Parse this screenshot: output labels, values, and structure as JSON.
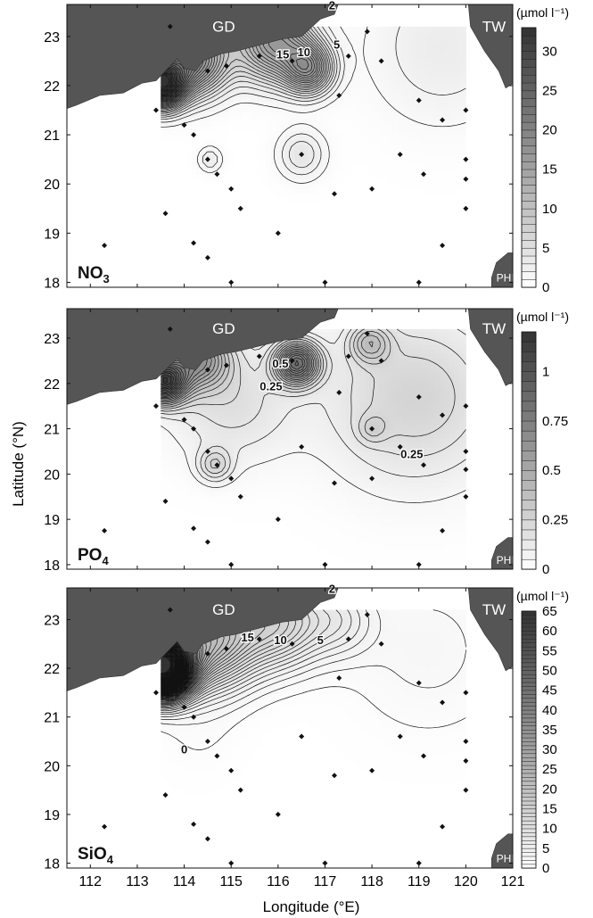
{
  "figure": {
    "xlabel": "Longitude (°E)",
    "ylabel": "Latitude (°N)",
    "x_ticks": [
      112,
      113,
      114,
      115,
      116,
      117,
      118,
      119,
      120,
      121
    ],
    "y_ticks": [
      18,
      19,
      20,
      21,
      22,
      23
    ],
    "unit_label": "(µmol l⁻¹)",
    "region_labels": {
      "guangdong": "GD",
      "taiwan": "TW",
      "philippines": "PHI"
    },
    "colors": {
      "land": "#555555",
      "contour": "#111111",
      "station": "#111111",
      "frame": "#111111"
    }
  },
  "chart_data": [
    {
      "type": "heatmap",
      "panel": "NO3",
      "label_main": "NO",
      "label_sub": "3",
      "xlim": [
        111.5,
        121
      ],
      "ylim": [
        17.9,
        23.65
      ],
      "colorbar": {
        "min": 0,
        "max": 33,
        "ticks": [
          0,
          5,
          10,
          15,
          20,
          25,
          30
        ],
        "step": 1
      },
      "contour_labels": [
        {
          "text": "15",
          "x": 116.1,
          "y": 22.55
        },
        {
          "text": "10",
          "x": 116.55,
          "y": 22.6
        },
        {
          "text": "5",
          "x": 117.25,
          "y": 22.75
        },
        {
          "text": "2",
          "x": 117.15,
          "y": 23.55
        }
      ],
      "field_sources": [
        {
          "x": 113.5,
          "y": 22.05,
          "amp": 31,
          "sigma": 0.33
        },
        {
          "x": 114.2,
          "y": 22.55,
          "amp": 18,
          "sigma": 0.5
        },
        {
          "x": 115.9,
          "y": 22.9,
          "amp": 16,
          "sigma": 0.55
        },
        {
          "x": 116.65,
          "y": 22.35,
          "amp": 14,
          "sigma": 0.35
        },
        {
          "x": 116.5,
          "y": 20.6,
          "amp": 4,
          "sigma": 0.35
        },
        {
          "x": 114.55,
          "y": 20.5,
          "amp": 3,
          "sigma": 0.18
        },
        {
          "x": 119.5,
          "y": 22.8,
          "amp": 3,
          "sigma": 1.1
        }
      ],
      "stations": [
        [
          113.7,
          23.2
        ],
        [
          114.5,
          22.3
        ],
        [
          114.9,
          22.4
        ],
        [
          115.6,
          22.6
        ],
        [
          116.3,
          22.5
        ],
        [
          117.5,
          22.6
        ],
        [
          118.2,
          22.5
        ],
        [
          117.9,
          23.1
        ],
        [
          119.0,
          21.7
        ],
        [
          117.3,
          21.8
        ],
        [
          119.5,
          21.3
        ],
        [
          120.0,
          21.5
        ],
        [
          114.0,
          21.2
        ],
        [
          114.5,
          20.5
        ],
        [
          114.7,
          20.2
        ],
        [
          115.0,
          19.9
        ],
        [
          115.2,
          19.5
        ],
        [
          116.0,
          19.0
        ],
        [
          116.5,
          20.6
        ],
        [
          117.2,
          19.8
        ],
        [
          118.0,
          19.9
        ],
        [
          118.6,
          20.6
        ],
        [
          119.1,
          20.2
        ],
        [
          120.0,
          20.5
        ],
        [
          120.0,
          20.1
        ],
        [
          120.0,
          19.5
        ],
        [
          119.5,
          18.75
        ],
        [
          112.3,
          18.75
        ],
        [
          114.2,
          18.8
        ],
        [
          114.5,
          18.5
        ],
        [
          113.6,
          19.4
        ],
        [
          115.0,
          18.0
        ],
        [
          117.0,
          18.0
        ],
        [
          119.0,
          18.0
        ],
        [
          113.4,
          21.5
        ],
        [
          114.2,
          21.0
        ]
      ]
    },
    {
      "type": "heatmap",
      "panel": "PO4",
      "label_main": "PO",
      "label_sub": "4",
      "xlim": [
        111.5,
        121
      ],
      "ylim": [
        17.9,
        23.65
      ],
      "colorbar": {
        "min": 0,
        "max": 1.2,
        "ticks": [
          0,
          0.25,
          0.5,
          0.75,
          1
        ],
        "step": 0.05
      },
      "contour_labels": [
        {
          "text": "0.5",
          "x": 116.05,
          "y": 22.35
        },
        {
          "text": "0.25",
          "x": 115.85,
          "y": 21.85
        },
        {
          "text": "0.25",
          "x": 118.85,
          "y": 20.35
        }
      ],
      "field_sources": [
        {
          "x": 113.55,
          "y": 22.05,
          "amp": 1.05,
          "sigma": 0.33
        },
        {
          "x": 114.3,
          "y": 22.55,
          "amp": 0.55,
          "sigma": 0.45
        },
        {
          "x": 116.4,
          "y": 22.45,
          "amp": 0.8,
          "sigma": 0.32
        },
        {
          "x": 117.95,
          "y": 22.9,
          "amp": 0.28,
          "sigma": 0.3
        },
        {
          "x": 114.65,
          "y": 20.2,
          "amp": 0.22,
          "sigma": 0.25
        },
        {
          "x": 118.0,
          "y": 21.0,
          "amp": 0.12,
          "sigma": 0.22
        },
        {
          "x": 118.9,
          "y": 21.7,
          "amp": 0.25,
          "sigma": 1.3
        },
        {
          "x": 115.0,
          "y": 21.6,
          "amp": 0.18,
          "sigma": 0.9
        }
      ],
      "stations": [
        [
          113.7,
          23.2
        ],
        [
          114.5,
          22.3
        ],
        [
          114.9,
          22.4
        ],
        [
          115.6,
          22.6
        ],
        [
          116.3,
          22.5
        ],
        [
          117.5,
          22.6
        ],
        [
          118.2,
          22.5
        ],
        [
          117.9,
          23.1
        ],
        [
          119.0,
          21.7
        ],
        [
          117.3,
          21.8
        ],
        [
          119.5,
          21.3
        ],
        [
          120.0,
          21.5
        ],
        [
          114.0,
          21.2
        ],
        [
          114.5,
          20.5
        ],
        [
          114.7,
          20.2
        ],
        [
          115.0,
          19.9
        ],
        [
          115.2,
          19.5
        ],
        [
          116.0,
          19.0
        ],
        [
          116.5,
          20.6
        ],
        [
          117.2,
          19.8
        ],
        [
          118.0,
          19.9
        ],
        [
          118.6,
          20.6
        ],
        [
          119.1,
          20.2
        ],
        [
          120.0,
          20.5
        ],
        [
          120.0,
          20.1
        ],
        [
          120.0,
          19.5
        ],
        [
          119.5,
          18.75
        ],
        [
          112.3,
          18.75
        ],
        [
          114.2,
          18.8
        ],
        [
          114.5,
          18.5
        ],
        [
          113.6,
          19.4
        ],
        [
          115.0,
          18.0
        ],
        [
          117.0,
          18.0
        ],
        [
          119.0,
          18.0
        ],
        [
          113.4,
          21.5
        ],
        [
          114.2,
          21.0
        ],
        [
          118.0,
          21.0
        ]
      ]
    },
    {
      "type": "heatmap",
      "panel": "SiO4",
      "label_main": "SiO",
      "label_sub": "4",
      "xlim": [
        111.5,
        121
      ],
      "ylim": [
        17.9,
        23.65
      ],
      "colorbar": {
        "min": 0,
        "max": 65,
        "ticks": [
          0,
          5,
          10,
          15,
          20,
          25,
          30,
          35,
          40,
          45,
          50,
          55,
          60,
          65
        ],
        "step": 1
      },
      "contour_labels": [
        {
          "text": "15",
          "x": 115.35,
          "y": 22.55
        },
        {
          "text": "10",
          "x": 116.05,
          "y": 22.5
        },
        {
          "text": "5",
          "x": 116.9,
          "y": 22.5
        },
        {
          "text": "2",
          "x": 117.15,
          "y": 23.55
        },
        {
          "text": "0",
          "x": 114.0,
          "y": 20.25
        }
      ],
      "field_sources": [
        {
          "x": 113.5,
          "y": 22.05,
          "amp": 65,
          "sigma": 0.42
        },
        {
          "x": 114.5,
          "y": 22.6,
          "amp": 20,
          "sigma": 0.7
        },
        {
          "x": 116.0,
          "y": 22.95,
          "amp": 12,
          "sigma": 0.65
        },
        {
          "x": 117.3,
          "y": 23.0,
          "amp": 5,
          "sigma": 0.55
        },
        {
          "x": 119.2,
          "y": 22.4,
          "amp": 2.5,
          "sigma": 1.2
        },
        {
          "x": 114.3,
          "y": 20.6,
          "amp": 1,
          "sigma": 0.6
        }
      ],
      "stations": [
        [
          113.7,
          23.2
        ],
        [
          114.5,
          22.3
        ],
        [
          114.9,
          22.4
        ],
        [
          115.6,
          22.6
        ],
        [
          116.3,
          22.5
        ],
        [
          117.5,
          22.6
        ],
        [
          118.2,
          22.5
        ],
        [
          117.9,
          23.1
        ],
        [
          119.0,
          21.7
        ],
        [
          117.3,
          21.8
        ],
        [
          119.5,
          21.3
        ],
        [
          120.0,
          21.5
        ],
        [
          114.0,
          21.2
        ],
        [
          114.5,
          20.5
        ],
        [
          114.7,
          20.2
        ],
        [
          115.0,
          19.9
        ],
        [
          115.2,
          19.5
        ],
        [
          116.0,
          19.0
        ],
        [
          116.5,
          20.6
        ],
        [
          117.2,
          19.8
        ],
        [
          118.0,
          19.9
        ],
        [
          118.6,
          20.6
        ],
        [
          119.1,
          20.2
        ],
        [
          120.0,
          20.5
        ],
        [
          120.0,
          20.1
        ],
        [
          120.0,
          19.5
        ],
        [
          119.5,
          18.75
        ],
        [
          112.3,
          18.75
        ],
        [
          114.2,
          18.8
        ],
        [
          114.5,
          18.5
        ],
        [
          113.6,
          19.4
        ],
        [
          115.0,
          18.0
        ],
        [
          117.0,
          18.0
        ],
        [
          119.0,
          18.0
        ],
        [
          113.4,
          21.5
        ],
        [
          114.2,
          21.0
        ]
      ]
    }
  ]
}
